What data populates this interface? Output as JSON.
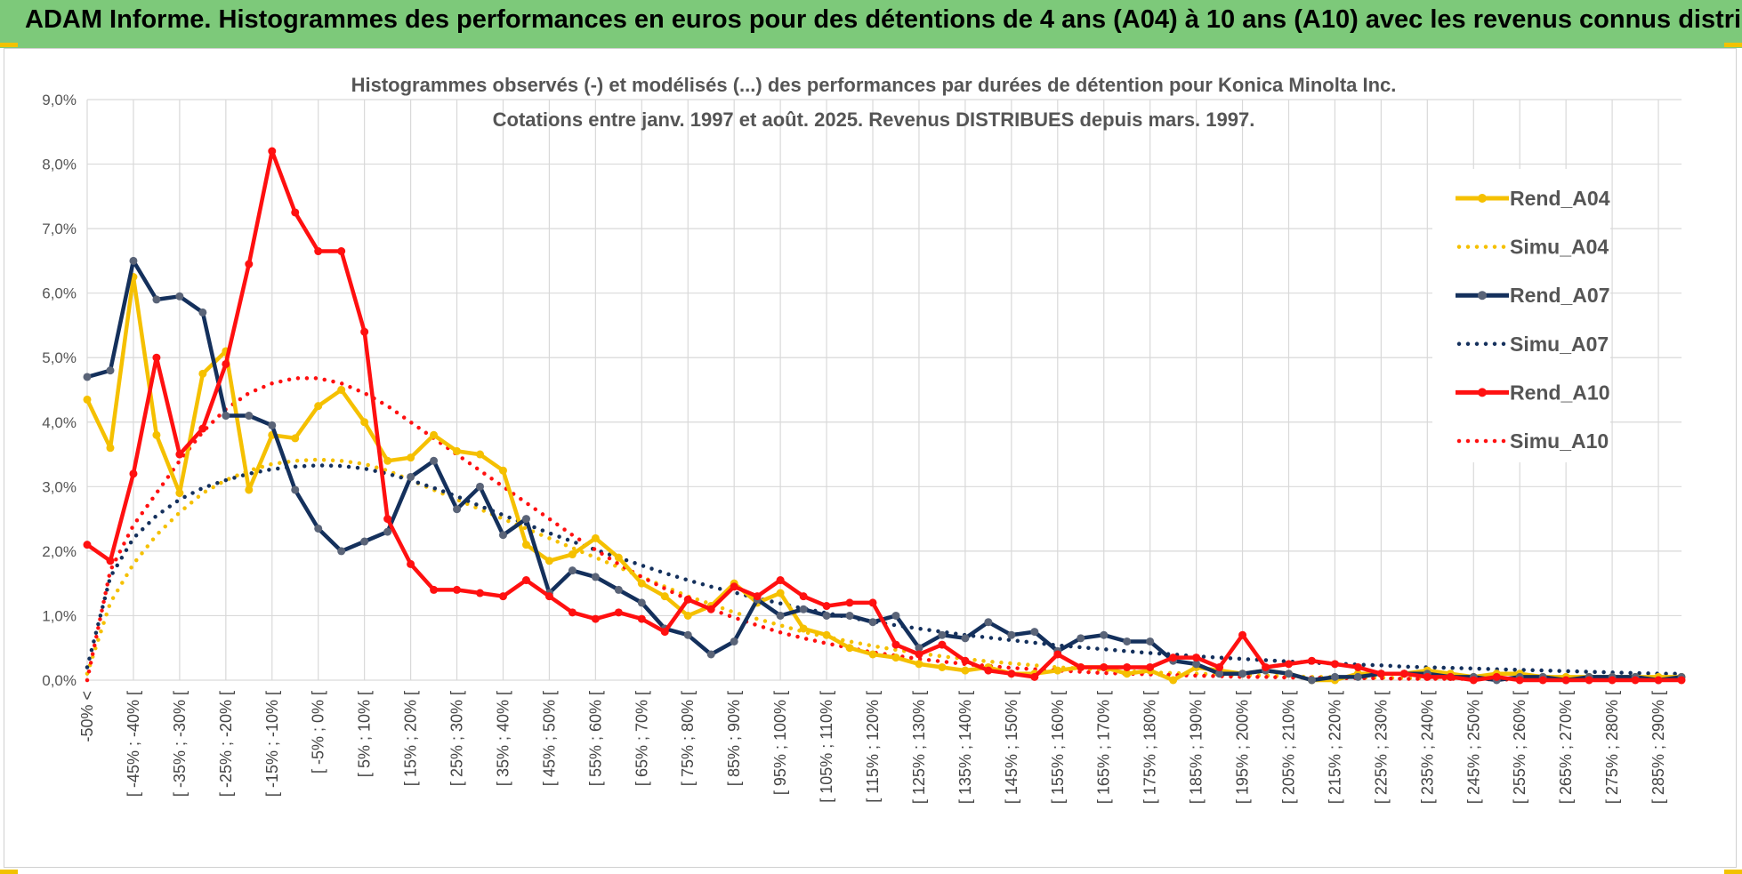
{
  "header": {
    "title": "ADAM Informe. Histogrammes des performances en euros pour des détentions de 4 ans (A04) à 10 ans (A10) avec les revenus connus distribués"
  },
  "chart_data": {
    "type": "line",
    "title_lines": [
      "Histogrammes observés (-) et modélisés (...) des performances par durées de détention pour Konica Minolta Inc.",
      "Cotations entre janv. 1997 et août. 2025. Revenus DISTRIBUES depuis mars. 1997."
    ],
    "xlabel": "",
    "ylabel": "",
    "ylim": [
      0,
      9
    ],
    "y_ticks": [
      "0,0%",
      "1,0%",
      "2,0%",
      "3,0%",
      "4,0%",
      "5,0%",
      "6,0%",
      "7,0%",
      "8,0%",
      "9,0%"
    ],
    "x_tick_labels": [
      "-50% <",
      "[ -45% ; -40% [",
      "[ -35% ; -30% [",
      "[ -25% ; -20% [",
      "[ -15% ; -10% [",
      "[ -5% ; 0% [",
      "[ 5% ; 10% [",
      "[ 15% ; 20% [",
      "[ 25% ; 30% [",
      "[ 35% ; 40% [",
      "[ 45% ; 50% [",
      "[ 55% ; 60% [",
      "[ 65% ; 70% [",
      "[ 75% ; 80% [",
      "[ 85% ; 90% [",
      "[ 95% ; 100% [",
      "[ 105% ; 110% [",
      "[ 115% ; 120% [",
      "[ 125% ; 130% [",
      "[ 135% ; 140% [",
      "[ 145% ; 150% [",
      "[ 155% ; 160% [",
      "[ 165% ; 170% [",
      "[ 175% ; 180% [",
      "[ 185% ; 190% [",
      "[ 195% ; 200% [",
      "[ 205% ; 210% [",
      "[ 215% ; 220% [",
      "[ 225% ; 230% [",
      "[ 235% ; 240% [",
      "[ 245% ; 250% [",
      "[ 255% ; 260% [",
      "[ 265% ; 270% [",
      "[ 275% ; 280% [",
      "[ 285% ; 290% ["
    ],
    "grid": true,
    "legend_position": "right",
    "series": [
      {
        "name": "Rend_A04",
        "style": "solid",
        "color": "#f5c000",
        "values": [
          4.35,
          3.6,
          6.25,
          3.8,
          2.9,
          4.75,
          5.1,
          2.95,
          3.8,
          3.75,
          4.25,
          4.5,
          4.0,
          3.4,
          3.45,
          3.8,
          3.55,
          3.5,
          3.25,
          2.1,
          1.85,
          1.95,
          2.2,
          1.9,
          1.5,
          1.3,
          1.0,
          1.15,
          1.5,
          1.2,
          1.35,
          0.8,
          0.7,
          0.5,
          0.4,
          0.35,
          0.25,
          0.2,
          0.15,
          0.2,
          0.1,
          0.1,
          0.15,
          0.2,
          0.2,
          0.1,
          0.15,
          0.0,
          0.2,
          0.15,
          0.1,
          0.15,
          0.1,
          0.0,
          0.0,
          0.1,
          0.1,
          0.1,
          0.15,
          0.1,
          0.05,
          0.1,
          0.1,
          0.05,
          0.05,
          0.05,
          0.05,
          0.05,
          0.05,
          0.05
        ]
      },
      {
        "name": "Simu_A04",
        "style": "dotted",
        "color": "#f5c000",
        "values": [
          0.1,
          1.2,
          1.8,
          2.25,
          2.6,
          2.9,
          3.1,
          3.25,
          3.35,
          3.4,
          3.42,
          3.4,
          3.35,
          3.25,
          3.1,
          2.95,
          2.8,
          2.65,
          2.5,
          2.35,
          2.2,
          2.05,
          1.9,
          1.75,
          1.6,
          1.45,
          1.3,
          1.18,
          1.05,
          0.95,
          0.85,
          0.75,
          0.67,
          0.6,
          0.53,
          0.47,
          0.42,
          0.37,
          0.33,
          0.29,
          0.26,
          0.23,
          0.2,
          0.18,
          0.16,
          0.14,
          0.12,
          0.11,
          0.1,
          0.09,
          0.08,
          0.07,
          0.06,
          0.05,
          0.05,
          0.04,
          0.04,
          0.03,
          0.03,
          0.03,
          0.02,
          0.02,
          0.02,
          0.02,
          0.01,
          0.01,
          0.01,
          0.01,
          0.01,
          0.01
        ]
      },
      {
        "name": "Rend_A07",
        "style": "solid",
        "color": "#14305c",
        "values": [
          4.7,
          4.8,
          6.5,
          5.9,
          5.95,
          5.7,
          4.1,
          4.1,
          3.95,
          2.95,
          2.35,
          2.0,
          2.15,
          2.3,
          3.15,
          3.4,
          2.65,
          3.0,
          2.25,
          2.5,
          1.35,
          1.7,
          1.6,
          1.4,
          1.2,
          0.8,
          0.7,
          0.4,
          0.6,
          1.25,
          1.0,
          1.1,
          1.0,
          1.0,
          0.9,
          1.0,
          0.5,
          0.7,
          0.65,
          0.9,
          0.7,
          0.75,
          0.45,
          0.65,
          0.7,
          0.6,
          0.6,
          0.3,
          0.25,
          0.1,
          0.1,
          0.15,
          0.1,
          0.0,
          0.05,
          0.05,
          0.1,
          0.1,
          0.1,
          0.05,
          0.05,
          0.0,
          0.05,
          0.05,
          0.0,
          0.05,
          0.05,
          0.05,
          0.0,
          0.05
        ]
      },
      {
        "name": "Simu_A07",
        "style": "dotted",
        "color": "#14305c",
        "values": [
          0.2,
          1.6,
          2.2,
          2.55,
          2.8,
          2.98,
          3.1,
          3.2,
          3.27,
          3.31,
          3.33,
          3.32,
          3.28,
          3.2,
          3.1,
          2.98,
          2.85,
          2.7,
          2.56,
          2.42,
          2.28,
          2.15,
          2.02,
          1.9,
          1.78,
          1.66,
          1.55,
          1.45,
          1.36,
          1.27,
          1.19,
          1.11,
          1.04,
          0.97,
          0.91,
          0.85,
          0.8,
          0.75,
          0.7,
          0.66,
          0.62,
          0.58,
          0.54,
          0.51,
          0.48,
          0.45,
          0.42,
          0.4,
          0.37,
          0.35,
          0.33,
          0.31,
          0.29,
          0.27,
          0.26,
          0.24,
          0.23,
          0.21,
          0.2,
          0.19,
          0.18,
          0.17,
          0.16,
          0.15,
          0.14,
          0.13,
          0.12,
          0.11,
          0.1,
          0.1
        ]
      },
      {
        "name": "Rend_A10",
        "style": "solid",
        "color": "#ff1010",
        "values": [
          2.1,
          1.85,
          3.2,
          5.0,
          3.5,
          3.9,
          4.9,
          6.45,
          8.2,
          7.25,
          6.65,
          6.65,
          5.4,
          2.5,
          1.8,
          1.4,
          1.4,
          1.35,
          1.3,
          1.55,
          1.3,
          1.05,
          0.95,
          1.05,
          0.95,
          0.75,
          1.25,
          1.1,
          1.45,
          1.3,
          1.55,
          1.3,
          1.15,
          1.2,
          1.2,
          0.55,
          0.4,
          0.55,
          0.3,
          0.15,
          0.1,
          0.05,
          0.4,
          0.2,
          0.2,
          0.2,
          0.2,
          0.35,
          0.35,
          0.2,
          0.7,
          0.2,
          0.25,
          0.3,
          0.25,
          0.2,
          0.1,
          0.1,
          0.05,
          0.05,
          0.0,
          0.05,
          0.0,
          0.0,
          0.0,
          0.0,
          0.0,
          0.0,
          0.0,
          0.0
        ]
      },
      {
        "name": "Simu_A10",
        "style": "dotted",
        "color": "#ff1010",
        "values": [
          0.0,
          1.7,
          2.4,
          2.9,
          3.4,
          3.85,
          4.2,
          4.45,
          4.6,
          4.68,
          4.68,
          4.6,
          4.45,
          4.25,
          4.0,
          3.75,
          3.5,
          3.25,
          3.0,
          2.75,
          2.5,
          2.25,
          2.02,
          1.8,
          1.6,
          1.42,
          1.25,
          1.1,
          0.97,
          0.85,
          0.74,
          0.65,
          0.57,
          0.5,
          0.43,
          0.38,
          0.33,
          0.29,
          0.25,
          0.22,
          0.19,
          0.17,
          0.15,
          0.13,
          0.11,
          0.1,
          0.09,
          0.08,
          0.07,
          0.06,
          0.05,
          0.05,
          0.04,
          0.04,
          0.03,
          0.03,
          0.03,
          0.02,
          0.02,
          0.02,
          0.02,
          0.01,
          0.01,
          0.01,
          0.01,
          0.01,
          0.01,
          0.01,
          0.01,
          0.01
        ]
      }
    ]
  }
}
